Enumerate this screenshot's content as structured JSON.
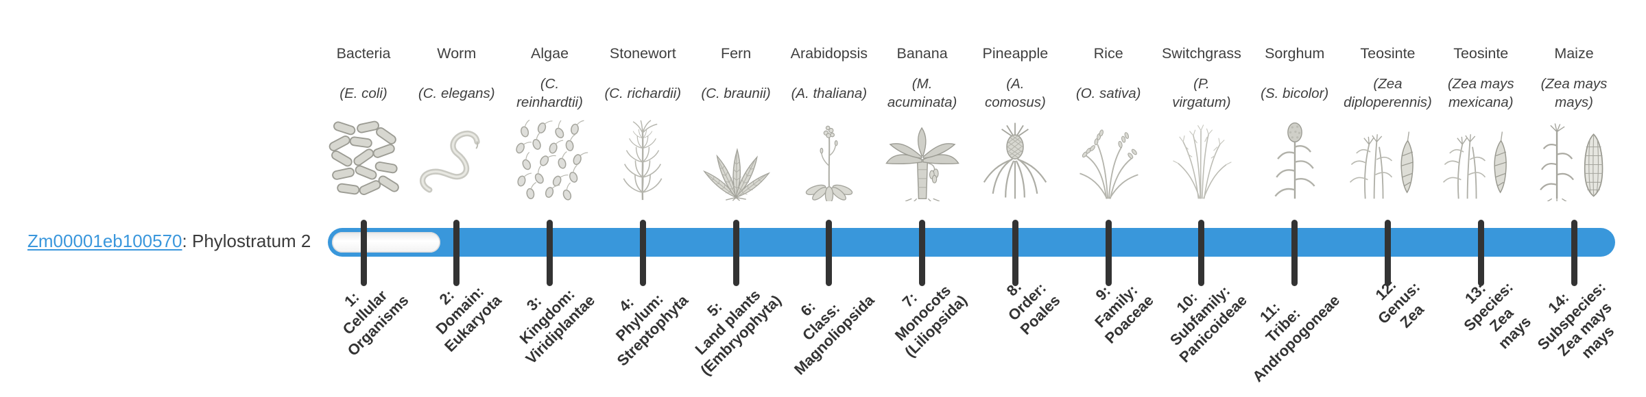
{
  "gene": {
    "id": "Zm00001eb100570",
    "label": ": Phylostratum 2",
    "phylostratum": 2
  },
  "colors": {
    "bar_fill": "#3997db",
    "bar_unfilled": "#f8f8f8",
    "tick": "#333333",
    "link": "#3a97dc",
    "text": "#3a3a3a"
  },
  "organisms": [
    {
      "name": "Bacteria",
      "sci_lines": [
        "(E. coli)"
      ],
      "icon": "bacteria-icon"
    },
    {
      "name": "Worm",
      "sci_lines": [
        "(C. elegans)"
      ],
      "icon": "worm-icon"
    },
    {
      "name": "Algae",
      "sci_lines": [
        "(C.",
        "reinhardtii)"
      ],
      "icon": "algae-icon"
    },
    {
      "name": "Stonewort",
      "sci_lines": [
        "(C. richardii)"
      ],
      "icon": "stonewort-icon"
    },
    {
      "name": "Fern",
      "sci_lines": [
        "(C. braunii)"
      ],
      "icon": "fern-icon"
    },
    {
      "name": "Arabidopsis",
      "sci_lines": [
        "(A. thaliana)"
      ],
      "icon": "arabidopsis-icon"
    },
    {
      "name": "Banana",
      "sci_lines": [
        "(M.",
        "acuminata)"
      ],
      "icon": "banana-icon"
    },
    {
      "name": "Pineapple",
      "sci_lines": [
        "(A.",
        "comosus)"
      ],
      "icon": "pineapple-icon"
    },
    {
      "name": "Rice",
      "sci_lines": [
        "(O. sativa)"
      ],
      "icon": "rice-icon"
    },
    {
      "name": "Switchgrass",
      "sci_lines": [
        "(P.",
        "virgatum)"
      ],
      "icon": "switchgrass-icon"
    },
    {
      "name": "Sorghum",
      "sci_lines": [
        "(S. bicolor)"
      ],
      "icon": "sorghum-icon"
    },
    {
      "name": "Teosinte",
      "sci_lines": [
        "(Zea",
        "diploperennis)"
      ],
      "icon": "teosinte-icon"
    },
    {
      "name": "Teosinte",
      "sci_lines": [
        "(Zea mays",
        "mexicana)"
      ],
      "icon": "teosinte-icon"
    },
    {
      "name": "Maize",
      "sci_lines": [
        "(Zea mays",
        "mays)"
      ],
      "icon": "maize-icon"
    }
  ],
  "strata": [
    {
      "lines": [
        "1:",
        "Cellular",
        "Organisms"
      ]
    },
    {
      "lines": [
        "2:",
        "Domain:",
        "Eukaryota"
      ]
    },
    {
      "lines": [
        "3:",
        "Kingdom:",
        "Viridiplantae"
      ]
    },
    {
      "lines": [
        "4:",
        "Phylum:",
        "Streptophyta"
      ]
    },
    {
      "lines": [
        "5:",
        "Land plants",
        "(Embryophyta)"
      ]
    },
    {
      "lines": [
        "6:",
        "Class:",
        "Magnoliopsida"
      ]
    },
    {
      "lines": [
        "7:",
        "Monocots",
        "(Liliopsida)"
      ]
    },
    {
      "lines": [
        "8:",
        "Order:",
        "Poales"
      ]
    },
    {
      "lines": [
        "9:",
        "Family:",
        "Poaceae"
      ]
    },
    {
      "lines": [
        "10:",
        "Subfamily:",
        "Panicoideae"
      ]
    },
    {
      "lines": [
        "11:",
        "Tribe:",
        "Andropogoneae"
      ]
    },
    {
      "lines": [
        "12:",
        "Genus:",
        "Zea"
      ]
    },
    {
      "lines": [
        "13:",
        "Species:",
        "Zea",
        "mays"
      ]
    },
    {
      "lines": [
        "14:",
        "Subspecies:",
        "Zea mays",
        "mays"
      ]
    }
  ],
  "chart_data": {
    "type": "bar",
    "title": "Zm00001eb100570: Phylostratum 2",
    "orientation": "horizontal-timeline",
    "gene": "Zm00001eb100570",
    "phylostratum_value": 2,
    "categories": [
      "1: Cellular Organisms",
      "2: Domain: Eukaryota",
      "3: Kingdom: Viridiplantae",
      "4: Phylum: Streptophyta",
      "5: Land plants (Embryophyta)",
      "6: Class: Magnoliopsida",
      "7: Monocots (Liliopsida)",
      "8: Order: Poales",
      "9: Family: Poaceae",
      "10: Subfamily: Panicoideae",
      "11: Tribe: Andropogoneae",
      "12: Genus: Zea",
      "13: Species: Zea mays",
      "14: Subspecies: Zea mays mays"
    ],
    "filled_from_stratum": 2,
    "values": [
      0,
      1,
      1,
      1,
      1,
      1,
      1,
      1,
      1,
      1,
      1,
      1,
      1,
      1
    ],
    "top_axis_organisms": [
      "Bacteria (E. coli)",
      "Worm (C. elegans)",
      "Algae (C. reinhardtii)",
      "Stonewort (C. richardii)",
      "Fern (C. braunii)",
      "Arabidopsis (A. thaliana)",
      "Banana (M. acuminata)",
      "Pineapple (A. comosus)",
      "Rice (O. sativa)",
      "Switchgrass (P. virgatum)",
      "Sorghum (S. bicolor)",
      "Teosinte (Zea diploperennis)",
      "Teosinte (Zea mays mexicana)",
      "Maize (Zea mays mays)"
    ],
    "legend_position": "none",
    "grid": false
  }
}
